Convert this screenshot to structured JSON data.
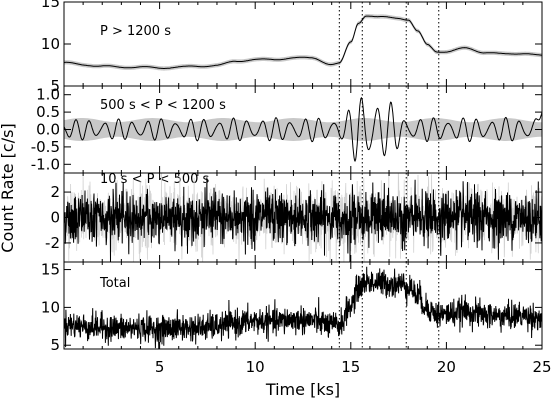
{
  "chart_data": {
    "type": "line",
    "xlabel": "Time [ks]",
    "ylabel": "Count Rate [c/s]",
    "xlim": [
      0,
      25
    ],
    "x_ticks": [
      "5",
      "10",
      "15",
      "20",
      "25"
    ],
    "vertical_lines_x": [
      14.4,
      15.6,
      17.9,
      19.6
    ],
    "colors": {
      "curve": "#000000",
      "uncertainty_band": "#c8c8c8"
    },
    "panels": [
      {
        "title": "P > 1200 s",
        "ylim": [
          5,
          15
        ],
        "yticks": [
          "5",
          "10",
          "15"
        ],
        "has_uncertainty_band": true,
        "x": [
          0,
          1,
          2,
          3,
          4,
          5,
          6,
          7,
          8,
          9,
          10,
          11,
          12,
          13,
          14,
          14.4,
          15,
          15.4,
          15.8,
          16.5,
          17.5,
          18,
          18.5,
          19,
          19.5,
          20,
          21,
          22,
          23,
          24,
          25
        ],
        "y": [
          7.8,
          7.5,
          7.4,
          7.2,
          7.3,
          7.1,
          7.3,
          7.3,
          7.5,
          7.9,
          8.2,
          8.1,
          8.4,
          8.3,
          7.6,
          7.7,
          10.2,
          12.5,
          13.4,
          13.2,
          13.1,
          12.9,
          11.5,
          9.9,
          9.1,
          9.1,
          9.5,
          9.0,
          8.8,
          8.9,
          8.6
        ]
      },
      {
        "title": "500 s < P < 1200 s",
        "ylim": [
          -1.25,
          1.25
        ],
        "yticks": [
          "-1.0",
          "-0.5",
          "0.0",
          "0.5",
          "1.0"
        ],
        "has_uncertainty_band": true,
        "band_halfwidth": 0.3,
        "amplitude_envelope": [
          {
            "x": 0,
            "amp": 0.3
          },
          {
            "x": 14.5,
            "amp": 0.35
          },
          {
            "x": 15.6,
            "amp": 1.15
          },
          {
            "x": 17.0,
            "amp": 0.8
          },
          {
            "x": 18.0,
            "amp": 0.35
          },
          {
            "x": 25,
            "amp": 0.35
          }
        ],
        "y_at_25": 0.5
      },
      {
        "title": "10 s < P < 500 s",
        "ylim": [
          -3.5,
          3.5
        ],
        "yticks": [
          "-2",
          "0",
          "2"
        ],
        "has_uncertainty_band": true,
        "noise_sigma": 1.0
      },
      {
        "title": "Total",
        "ylim": [
          4.5,
          16
        ],
        "yticks": [
          "5",
          "10",
          "15"
        ],
        "has_uncertainty_band": false,
        "noise_sigma": 0.9
      }
    ]
  }
}
